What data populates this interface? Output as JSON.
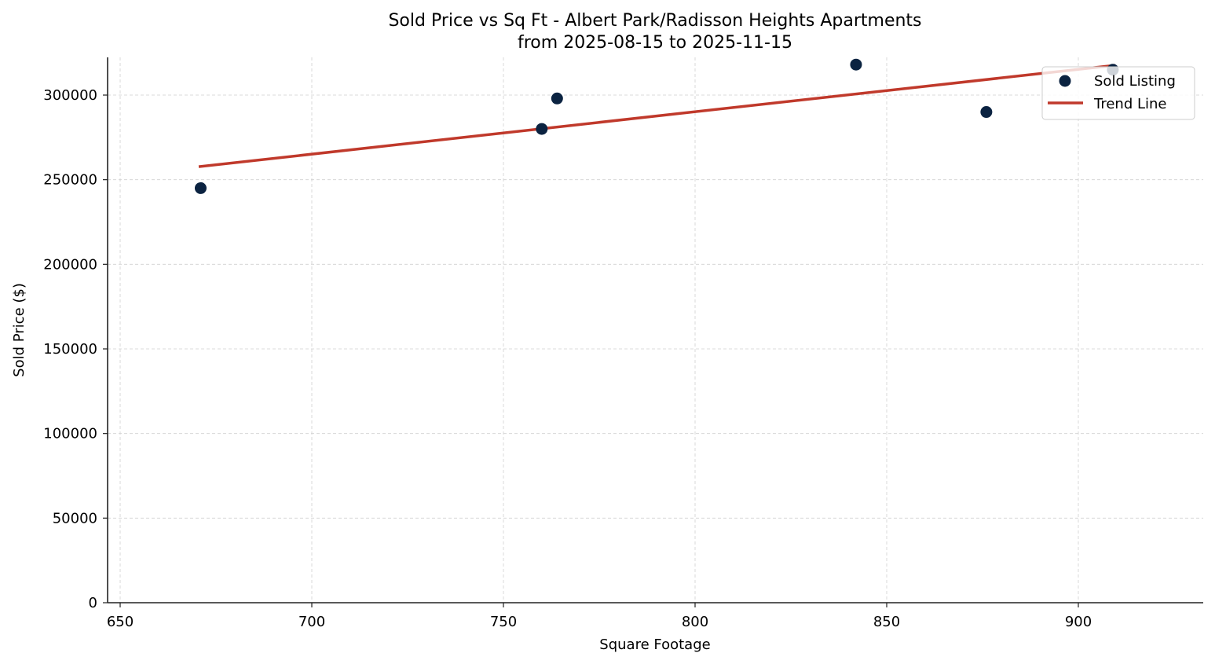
{
  "chart_data": {
    "type": "scatter",
    "title": "Sold Price vs Sq Ft - Albert Park/Radisson Heights Apartments",
    "subtitle": "from 2025-08-15 to 2025-11-15",
    "xlabel": "Square Footage",
    "ylabel": "Sold Price ($)",
    "xlim": [
      646,
      932
    ],
    "ylim": [
      0,
      322000
    ],
    "x_ticks": [
      650,
      700,
      750,
      800,
      850,
      900
    ],
    "y_ticks": [
      0,
      50000,
      100000,
      150000,
      200000,
      250000,
      300000
    ],
    "grid": true,
    "legend_position": "upper right",
    "series": [
      {
        "name": "Sold Listing",
        "type": "scatter",
        "color": "#0b2341",
        "points": [
          {
            "x": 671,
            "y": 245000
          },
          {
            "x": 760,
            "y": 280000
          },
          {
            "x": 764,
            "y": 298000
          },
          {
            "x": 842,
            "y": 318000
          },
          {
            "x": 876,
            "y": 290000
          },
          {
            "x": 909,
            "y": 315000
          }
        ]
      },
      {
        "name": "Trend Line",
        "type": "line",
        "color": "#c0392b",
        "points": [
          {
            "x": 670.5,
            "y": 257700
          },
          {
            "x": 909.6,
            "y": 317600
          }
        ]
      }
    ]
  },
  "legend": {
    "items": [
      {
        "label": "Sold Listing"
      },
      {
        "label": "Trend Line"
      }
    ]
  }
}
